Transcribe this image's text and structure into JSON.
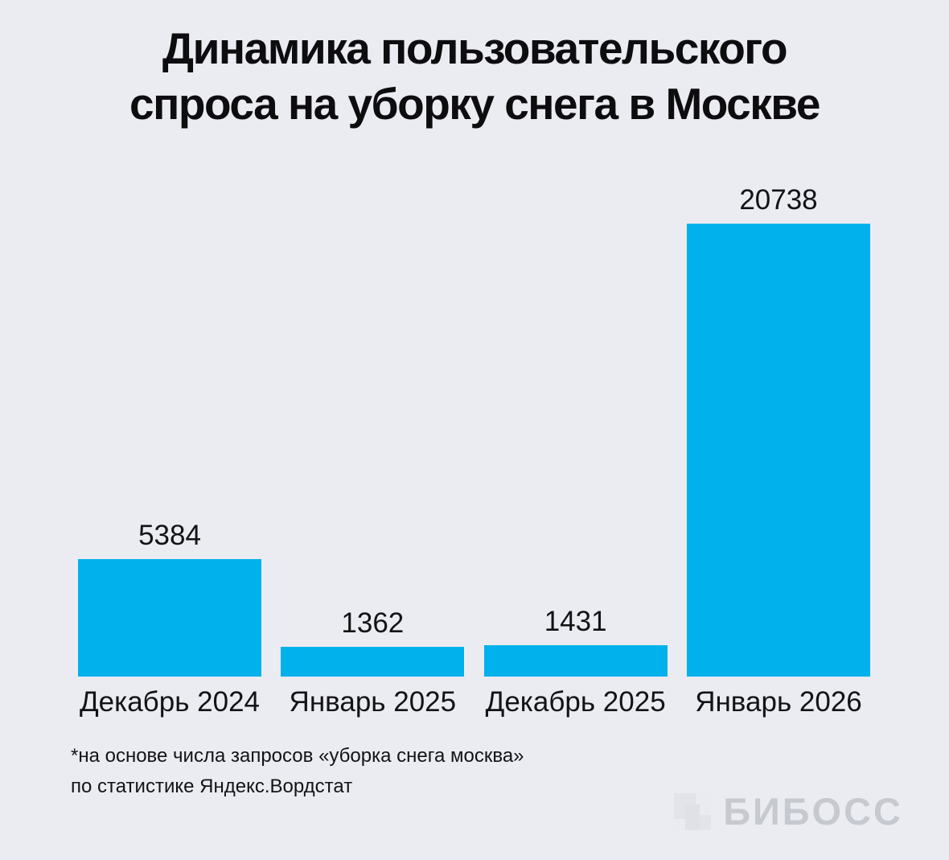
{
  "page": {
    "background": "#ebecf1"
  },
  "header": {
    "title_line1": "Динамика пользовательского",
    "title_line2": "спроса на уборку снега в Москве"
  },
  "chart_data": {
    "type": "bar",
    "title": "Динамика пользовательского спроса на уборку снега в Москве",
    "categories": [
      "Декабрь 2024",
      "Январь 2025",
      "Декабрь 2025",
      "Январь 2026"
    ],
    "values": [
      5384,
      1362,
      1431,
      20738
    ],
    "value_labels_shown": true,
    "bar_color": "#00b1ec",
    "text_color": "#131315",
    "ylim": [
      0,
      20738
    ],
    "grid": false,
    "legend": false,
    "xlabel": "",
    "ylabel": ""
  },
  "footnote": {
    "line1": "*на основе числа запросов «уборка снега москва»",
    "line2": "по статистике Яндекс.Вордстат"
  },
  "branding": {
    "logo_text": "БИБОСС",
    "logo_color": "#c6c9cf",
    "logo_icon": "biboss-square-icon"
  }
}
